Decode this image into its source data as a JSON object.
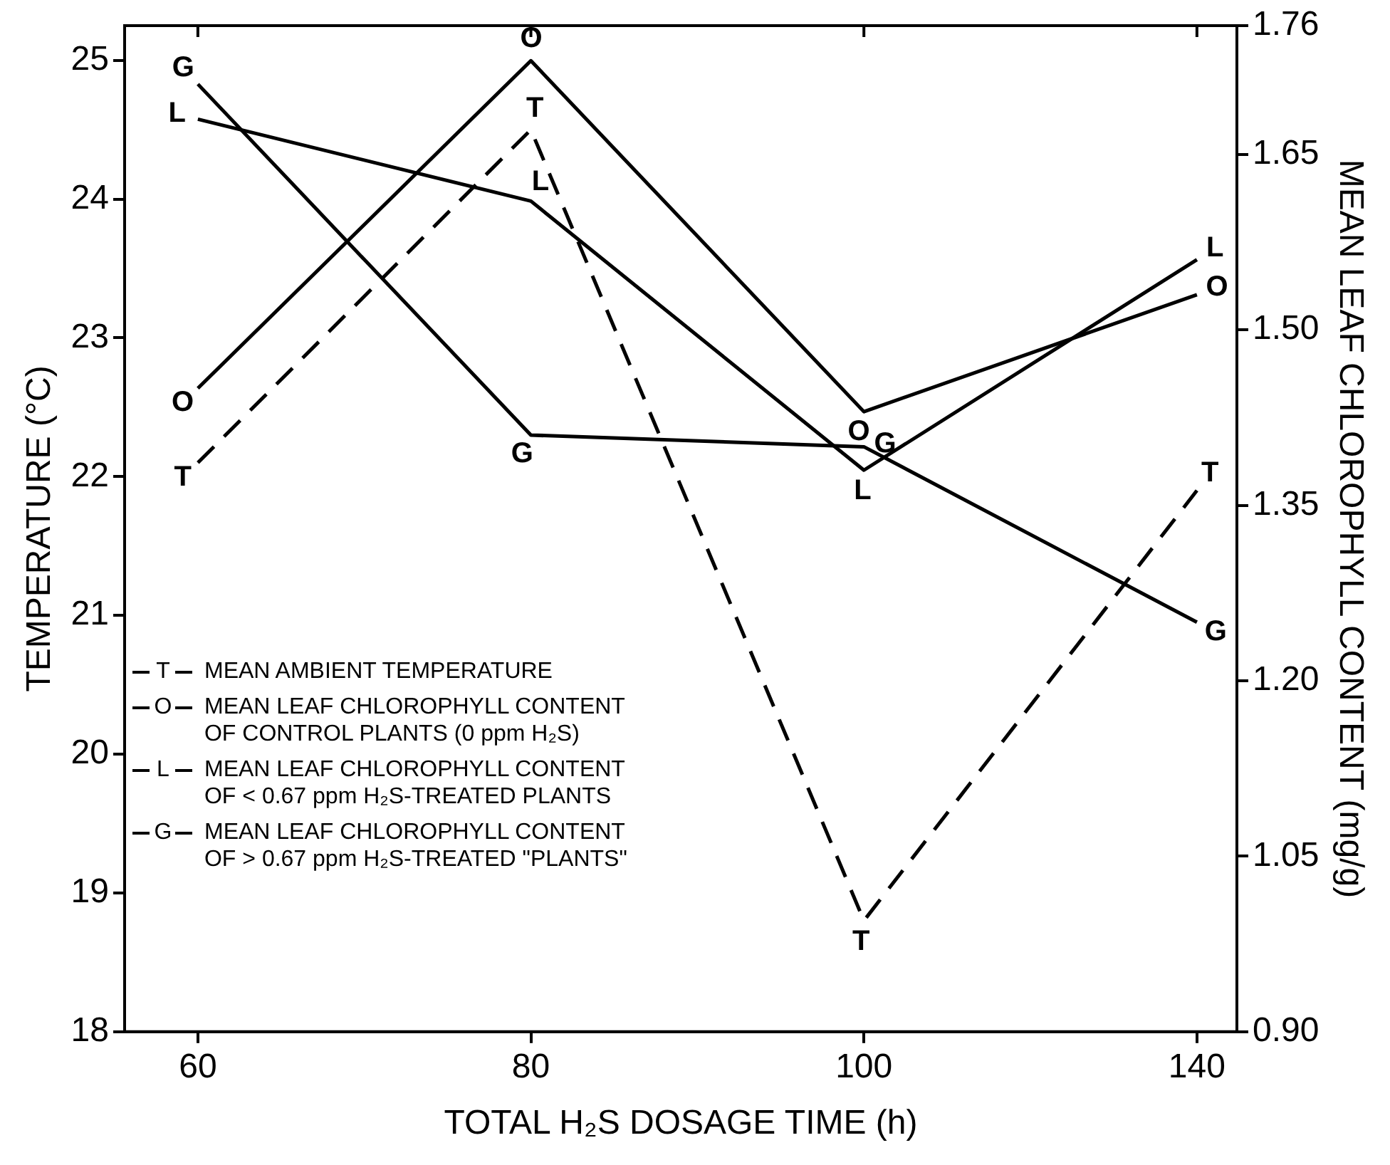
{
  "chart_data": {
    "type": "line",
    "xlabel": "TOTAL H₂S DOSAGE TIME (h)",
    "ylabel": "TEMPERATURE (°C)",
    "y2label": "MEAN LEAF CHLOROPHYLL CONTENT (mg/g)",
    "categories": [
      "60",
      "80",
      "100",
      "140"
    ],
    "series": [
      {
        "name": "MEAN AMBIENT TEMPERATURE",
        "color": "#000000",
        "line_style": "dashed",
        "values": [
          22.1,
          24.5,
          18.8,
          21.9
        ]
      },
      {
        "name": "MEAN LEAF CHLOROPHYLL CONTENT OF CONTROL PLANTS (0 ppm H₂S)",
        "color": "#000000",
        "line_style": "solid",
        "axis": "y2",
        "values": [
          1.45,
          1.73,
          1.43,
          1.53
        ]
      },
      {
        "name": "MEAN LEAF CHLOROPHYLL CONTENT OF < 0.67 ppm H₂S-TREATED PLANTS",
        "color": "#000000",
        "line_style": "solid",
        "axis": "y2",
        "values": [
          1.68,
          1.61,
          1.38,
          1.56
        ]
      },
      {
        "name": "MEAN LEAF CHLOROPHYLL CONTENT OF > 0.67 ppm H₂S-TREATED \"PLANTS\"",
        "color": "#000000",
        "line_style": "solid",
        "axis": "y2",
        "values": [
          1.71,
          1.41,
          1.4,
          1.25
        ]
      }
    ],
    "annotations": [
      "T",
      "O",
      "L",
      "G"
    ],
    "ylim": [
      18,
      25.25
    ],
    "yticks": [
      18,
      19,
      20,
      21,
      22,
      23,
      24,
      25
    ],
    "y2lim": [
      0.9,
      1.76
    ],
    "y2ticks": [
      {
        "value": 0.9,
        "label": "0.90"
      },
      1.05,
      {
        "value": 1.2,
        "label": "1.20"
      },
      1.35,
      {
        "value": 1.5,
        "label": "1.50"
      },
      1.65,
      1.76
    ],
    "grid": false,
    "legend": "bottom left",
    "marker": "none"
  }
}
